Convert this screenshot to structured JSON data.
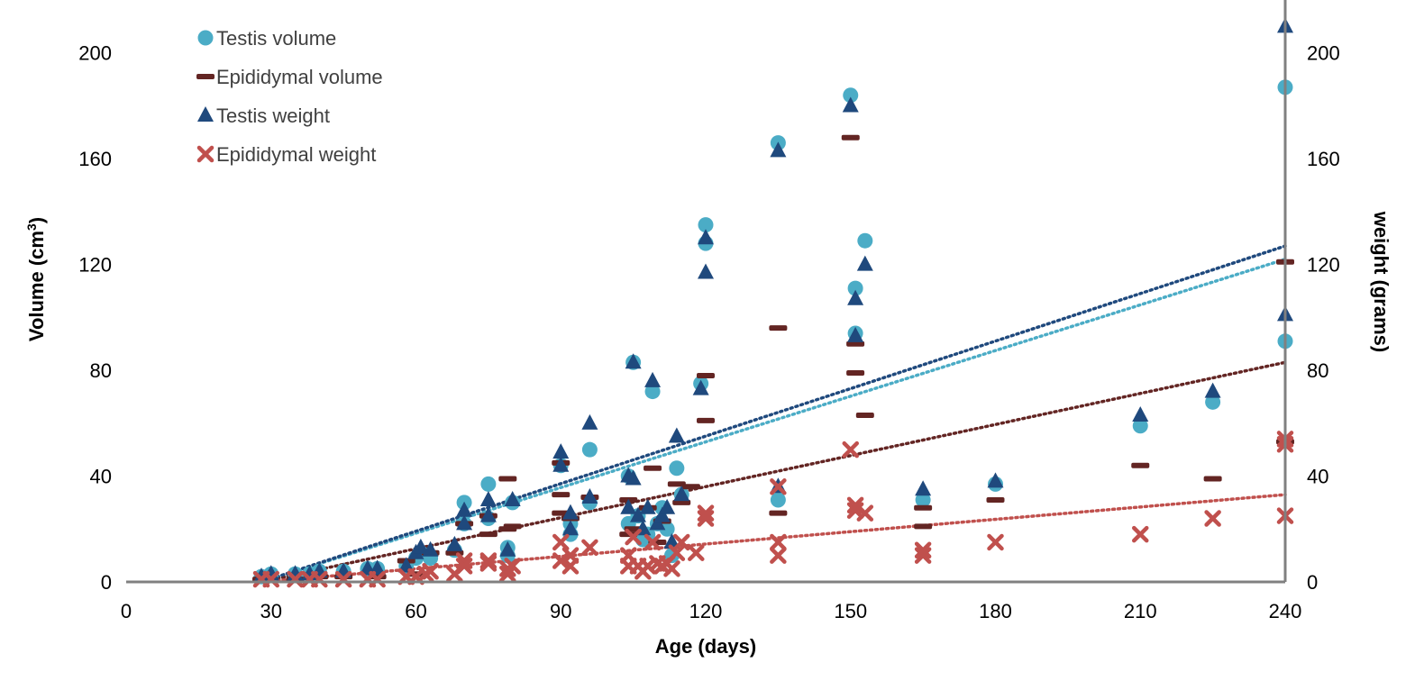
{
  "chart_data": {
    "type": "scatter",
    "xlabel": "Age (days)",
    "ylabel_left": "Volume  (cm",
    "ylabel_left_sup": "3",
    "ylabel_left_close": ")",
    "ylabel_right": "weight (grams)",
    "xlim": [
      0,
      240
    ],
    "ylim_left": [
      0,
      220
    ],
    "ylim_right": [
      0,
      220
    ],
    "x_ticks": [
      "0",
      "30",
      "60",
      "90",
      "120",
      "150",
      "180",
      "210",
      "240"
    ],
    "y_ticks_left": [
      "0",
      "40",
      "80",
      "120",
      "160",
      "200"
    ],
    "y_ticks_right": [
      "0",
      "40",
      "80",
      "120",
      "160",
      "200"
    ],
    "legend_position": "top-left",
    "series": [
      {
        "name": "Testis volume",
        "marker": "circle",
        "color": "#4BACC6",
        "axis": "left",
        "trendline": {
          "color": "#4BACC6",
          "x": [
            28,
            240
          ],
          "y": [
            0,
            122
          ]
        },
        "points": [
          [
            28,
            2
          ],
          [
            30,
            3
          ],
          [
            35,
            3
          ],
          [
            38,
            3
          ],
          [
            40,
            4
          ],
          [
            45,
            4
          ],
          [
            50,
            5
          ],
          [
            52,
            5
          ],
          [
            58,
            6
          ],
          [
            60,
            9
          ],
          [
            61,
            11
          ],
          [
            63,
            9
          ],
          [
            68,
            12
          ],
          [
            70,
            22
          ],
          [
            70,
            30
          ],
          [
            75,
            24
          ],
          [
            75,
            37
          ],
          [
            79,
            13
          ],
          [
            79,
            10
          ],
          [
            80,
            30
          ],
          [
            90,
            44
          ],
          [
            92,
            18
          ],
          [
            92,
            22
          ],
          [
            96,
            30
          ],
          [
            96,
            50
          ],
          [
            104,
            22
          ],
          [
            104,
            40
          ],
          [
            105,
            83
          ],
          [
            106,
            25
          ],
          [
            107,
            16
          ],
          [
            108,
            18
          ],
          [
            109,
            72
          ],
          [
            110,
            22
          ],
          [
            111,
            28
          ],
          [
            112,
            20
          ],
          [
            113,
            10
          ],
          [
            114,
            43
          ],
          [
            115,
            33
          ],
          [
            119,
            75
          ],
          [
            120,
            128
          ],
          [
            120,
            135
          ],
          [
            135,
            31
          ],
          [
            135,
            166
          ],
          [
            150,
            184
          ],
          [
            151,
            111
          ],
          [
            151,
            94
          ],
          [
            153,
            129
          ],
          [
            165,
            31
          ],
          [
            180,
            37
          ],
          [
            210,
            59
          ],
          [
            225,
            68
          ],
          [
            240,
            91
          ],
          [
            240,
            187
          ]
        ]
      },
      {
        "name": "Epididymal volume",
        "marker": "dash",
        "color": "#632523",
        "axis": "left",
        "trendline": {
          "color": "#632523",
          "x": [
            28,
            240
          ],
          "y": [
            0,
            83
          ]
        },
        "points": [
          [
            28,
            1
          ],
          [
            35,
            1
          ],
          [
            40,
            2
          ],
          [
            45,
            2
          ],
          [
            52,
            2
          ],
          [
            58,
            8
          ],
          [
            60,
            3
          ],
          [
            63,
            11
          ],
          [
            68,
            11
          ],
          [
            70,
            22
          ],
          [
            75,
            18
          ],
          [
            75,
            25
          ],
          [
            79,
            20
          ],
          [
            79,
            39
          ],
          [
            80,
            21
          ],
          [
            90,
            33
          ],
          [
            90,
            26
          ],
          [
            90,
            45
          ],
          [
            92,
            24
          ],
          [
            96,
            32
          ],
          [
            104,
            18
          ],
          [
            104,
            31
          ],
          [
            105,
            20
          ],
          [
            108,
            28
          ],
          [
            109,
            43
          ],
          [
            110,
            15
          ],
          [
            111,
            23
          ],
          [
            114,
            37
          ],
          [
            115,
            30
          ],
          [
            117,
            36
          ],
          [
            120,
            61
          ],
          [
            120,
            78
          ],
          [
            135,
            26
          ],
          [
            135,
            96
          ],
          [
            150,
            168
          ],
          [
            151,
            79
          ],
          [
            151,
            90
          ],
          [
            153,
            63
          ],
          [
            165,
            21
          ],
          [
            165,
            28
          ],
          [
            180,
            31
          ],
          [
            210,
            44
          ],
          [
            225,
            39
          ],
          [
            240,
            53
          ],
          [
            240,
            121
          ]
        ]
      },
      {
        "name": "Testis weight",
        "marker": "triangle",
        "color": "#1F497D",
        "axis": "right",
        "trendline": {
          "color": "#1F497D",
          "x": [
            28,
            240
          ],
          "y": [
            0,
            127
          ]
        },
        "points": [
          [
            28,
            2
          ],
          [
            30,
            3
          ],
          [
            35,
            3
          ],
          [
            38,
            3
          ],
          [
            40,
            4
          ],
          [
            45,
            4
          ],
          [
            50,
            5
          ],
          [
            52,
            5
          ],
          [
            58,
            6
          ],
          [
            60,
            11
          ],
          [
            61,
            13
          ],
          [
            63,
            12
          ],
          [
            68,
            14
          ],
          [
            70,
            22
          ],
          [
            70,
            27
          ],
          [
            75,
            25
          ],
          [
            75,
            31
          ],
          [
            79,
            12
          ],
          [
            80,
            31
          ],
          [
            90,
            44
          ],
          [
            90,
            49
          ],
          [
            92,
            20
          ],
          [
            92,
            26
          ],
          [
            96,
            32
          ],
          [
            96,
            60
          ],
          [
            104,
            28
          ],
          [
            104,
            40
          ],
          [
            105,
            39
          ],
          [
            105,
            83
          ],
          [
            106,
            25
          ],
          [
            107,
            20
          ],
          [
            108,
            28
          ],
          [
            109,
            76
          ],
          [
            110,
            22
          ],
          [
            111,
            25
          ],
          [
            112,
            28
          ],
          [
            113,
            15
          ],
          [
            114,
            55
          ],
          [
            115,
            33
          ],
          [
            119,
            73
          ],
          [
            120,
            117
          ],
          [
            120,
            130
          ],
          [
            135,
            36
          ],
          [
            135,
            163
          ],
          [
            150,
            180
          ],
          [
            151,
            107
          ],
          [
            151,
            93
          ],
          [
            153,
            120
          ],
          [
            165,
            35
          ],
          [
            180,
            38
          ],
          [
            210,
            63
          ],
          [
            225,
            72
          ],
          [
            240,
            101
          ],
          [
            240,
            210
          ]
        ]
      },
      {
        "name": "Epididymal weight",
        "marker": "x",
        "color": "#C0504D",
        "axis": "right",
        "trendline": {
          "color": "#C0504D",
          "x": [
            28,
            240
          ],
          "y": [
            0,
            33
          ]
        },
        "points": [
          [
            28,
            1
          ],
          [
            30,
            1
          ],
          [
            35,
            1
          ],
          [
            38,
            1
          ],
          [
            40,
            1
          ],
          [
            45,
            1
          ],
          [
            50,
            1
          ],
          [
            52,
            1
          ],
          [
            58,
            2
          ],
          [
            60,
            2
          ],
          [
            62,
            3
          ],
          [
            63,
            4
          ],
          [
            68,
            3
          ],
          [
            70,
            8
          ],
          [
            70,
            6
          ],
          [
            75,
            7
          ],
          [
            75,
            8
          ],
          [
            79,
            3
          ],
          [
            79,
            5
          ],
          [
            80,
            6
          ],
          [
            90,
            8
          ],
          [
            90,
            15
          ],
          [
            92,
            6
          ],
          [
            92,
            10
          ],
          [
            96,
            13
          ],
          [
            104,
            6
          ],
          [
            104,
            10
          ],
          [
            105,
            17
          ],
          [
            106,
            6
          ],
          [
            107,
            4
          ],
          [
            108,
            6
          ],
          [
            109,
            15
          ],
          [
            110,
            7
          ],
          [
            111,
            6
          ],
          [
            112,
            7
          ],
          [
            113,
            5
          ],
          [
            114,
            11
          ],
          [
            115,
            15
          ],
          [
            118,
            11
          ],
          [
            120,
            24
          ],
          [
            120,
            26
          ],
          [
            135,
            10
          ],
          [
            135,
            15
          ],
          [
            135,
            36
          ],
          [
            150,
            50
          ],
          [
            151,
            27
          ],
          [
            151,
            29
          ],
          [
            153,
            26
          ],
          [
            165,
            10
          ],
          [
            165,
            12
          ],
          [
            180,
            15
          ],
          [
            210,
            18
          ],
          [
            225,
            24
          ],
          [
            240,
            25
          ],
          [
            240,
            52
          ],
          [
            240,
            54
          ]
        ]
      }
    ]
  }
}
